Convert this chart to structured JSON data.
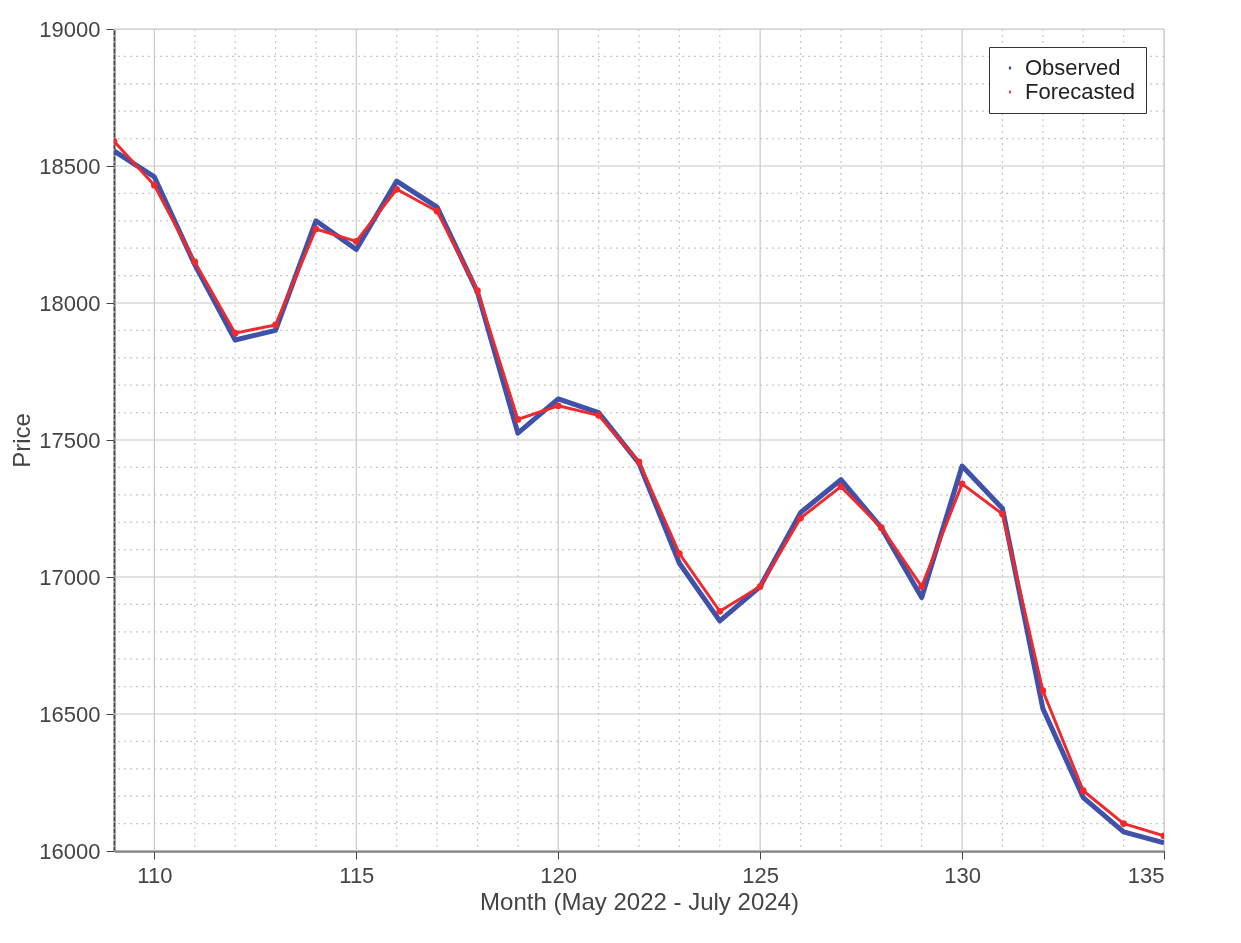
{
  "chart_data": {
    "type": "line",
    "xlabel": "Month (May 2022 - July 2024)",
    "ylabel": "Price",
    "x": [
      109,
      110,
      111,
      112,
      113,
      114,
      115,
      116,
      117,
      118,
      119,
      120,
      121,
      122,
      123,
      124,
      125,
      126,
      127,
      128,
      129,
      130,
      131,
      132,
      133,
      134,
      135
    ],
    "series": [
      {
        "name": "Observed",
        "color": "#3f51a8",
        "marker": "none",
        "values": [
          18555,
          18460,
          18140,
          17865,
          17900,
          18300,
          18195,
          18445,
          18350,
          18040,
          17525,
          17650,
          17600,
          17415,
          17050,
          16840,
          16965,
          17235,
          17355,
          17180,
          16925,
          17405,
          17250,
          16520,
          16195,
          16070,
          16030
        ]
      },
      {
        "name": "Forecasted",
        "color": "#ee2a2f",
        "marker": "circle",
        "values": [
          18590,
          18430,
          18150,
          17890,
          17920,
          18270,
          18225,
          18415,
          18335,
          18045,
          17575,
          17625,
          17590,
          17420,
          17085,
          16875,
          16965,
          17215,
          17330,
          17180,
          16965,
          17340,
          17230,
          16585,
          16220,
          16100,
          16055
        ]
      }
    ],
    "xlim": [
      109,
      135
    ],
    "xticks": [
      {
        "value": 109,
        "label": null
      },
      110,
      {
        "value": 111,
        "label": null
      },
      {
        "value": 112,
        "label": null
      },
      {
        "value": 113,
        "label": null
      },
      {
        "value": 114,
        "label": null
      },
      115,
      {
        "value": 116,
        "label": null
      },
      {
        "value": 117,
        "label": null
      },
      {
        "value": 118,
        "label": null
      },
      {
        "value": 119,
        "label": null
      },
      120,
      {
        "value": 121,
        "label": null
      },
      {
        "value": 122,
        "label": null
      },
      {
        "value": 123,
        "label": null
      },
      {
        "value": 124,
        "label": null
      },
      125,
      {
        "value": 126,
        "label": null
      },
      {
        "value": 127,
        "label": null
      },
      {
        "value": 128,
        "label": null
      },
      {
        "value": 129,
        "label": null
      },
      130,
      {
        "value": 131,
        "label": null
      },
      {
        "value": 132,
        "label": null
      },
      {
        "value": 133,
        "label": null
      },
      {
        "value": 134,
        "label": null
      },
      135
    ],
    "ylim": [
      16000,
      19000
    ],
    "yticks": [
      16000,
      {
        "value": 16100,
        "label": null
      },
      {
        "value": 16200,
        "label": null
      },
      {
        "value": 16300,
        "label": null
      },
      {
        "value": 16400,
        "label": null
      },
      16500,
      {
        "value": 16600,
        "label": null
      },
      {
        "value": 16700,
        "label": null
      },
      {
        "value": 16800,
        "label": null
      },
      {
        "value": 16900,
        "label": null
      },
      17000,
      {
        "value": 17100,
        "label": null
      },
      {
        "value": 17200,
        "label": null
      },
      {
        "value": 17300,
        "label": null
      },
      {
        "value": 17400,
        "label": null
      },
      17500,
      {
        "value": 17600,
        "label": null
      },
      {
        "value": 17700,
        "label": null
      },
      {
        "value": 17800,
        "label": null
      },
      {
        "value": 17900,
        "label": null
      },
      18000,
      {
        "value": 18100,
        "label": null
      },
      {
        "value": 18200,
        "label": null
      },
      {
        "value": 18300,
        "label": null
      },
      {
        "value": 18400,
        "label": null
      },
      18500,
      {
        "value": 18600,
        "label": null
      },
      {
        "value": 18700,
        "label": null
      },
      {
        "value": 18800,
        "label": null
      },
      {
        "value": 18900,
        "label": null
      },
      19000
    ],
    "grid": true,
    "legend": "top right",
    "line_style": "solid"
  }
}
